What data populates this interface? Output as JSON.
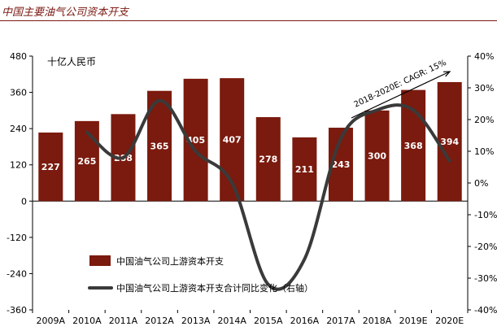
{
  "title": "中国主要油气公司资本开支",
  "chart_data": {
    "type": "bar+line",
    "title": "中国主要油气公司资本开支",
    "unit_label": "十亿人民币",
    "categories": [
      "2009A",
      "2010A",
      "2011A",
      "2012A",
      "2013A",
      "2014A",
      "2015A",
      "2016A",
      "2017A",
      "2018A",
      "2019E",
      "2020E"
    ],
    "series": [
      {
        "name": "中国油气公司上游资本开支",
        "type": "bar",
        "axis": "left",
        "color": "#7b1a0e",
        "values": [
          227,
          265,
          288,
          365,
          405,
          407,
          278,
          211,
          243,
          300,
          368,
          394
        ]
      },
      {
        "name": "中国油气公司上游资本开支合计同比变化（右轴）",
        "type": "line",
        "axis": "right",
        "color": "#3a3a3a",
        "values": [
          null,
          16,
          8,
          26,
          10,
          0,
          -32,
          -24,
          14,
          23,
          23,
          7
        ]
      }
    ],
    "y_left": {
      "min": -360,
      "max": 480,
      "ticks": [
        -360,
        -240,
        -120,
        0,
        120,
        240,
        360,
        480
      ]
    },
    "y_right": {
      "min": -40,
      "max": 40,
      "ticks": [
        -40,
        -30,
        -20,
        -10,
        0,
        10,
        20,
        30,
        40
      ],
      "tick_labels": [
        "-40%",
        "-30%",
        "-20%",
        "-10%",
        "0%",
        "10%",
        "20%",
        "30%",
        "40%"
      ]
    },
    "annotation": {
      "text": "2018-2020E: CAGR: 15%"
    },
    "legend": {
      "position": "lower-center"
    }
  }
}
